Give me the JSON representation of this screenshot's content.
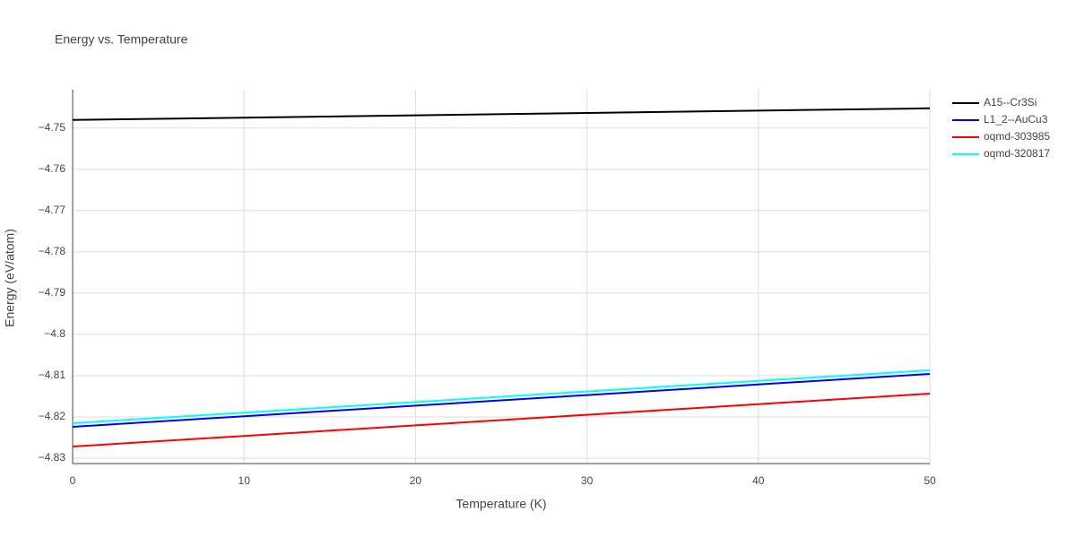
{
  "chart_data": {
    "type": "line",
    "title": "Energy vs. Temperature",
    "x_label": "Temperature (K)",
    "y_label": "Energy (eV/atom)",
    "x": [
      0,
      10,
      20,
      30,
      40,
      50
    ],
    "series": [
      {
        "name": "A15--Cr3Si",
        "color": "#000000",
        "values": [
          -4.74804,
          -4.74748,
          -4.74691,
          -4.74635,
          -4.74578,
          -4.74522
        ]
      },
      {
        "name": "L1_2--AuCu3",
        "color": "#0000ff",
        "values": [
          -4.82239,
          -4.81983,
          -4.81726,
          -4.8147,
          -4.81213,
          -4.80957
        ]
      },
      {
        "name": "oqmd-303985",
        "color": "#ff0000",
        "values": [
          -4.82717,
          -4.82461,
          -4.82204,
          -4.81948,
          -4.81691,
          -4.81435
        ]
      },
      {
        "name": "oqmd-320817",
        "color": "#00ffff",
        "values": [
          -4.82152,
          -4.81896,
          -4.81639,
          -4.81383,
          -4.81126,
          -4.8087
        ]
      }
    ],
    "xlim": [
      0,
      50
    ],
    "xticks": [
      0,
      10,
      20,
      30,
      40,
      50
    ],
    "ylim": [
      -4.8313,
      -4.7407
    ],
    "yticks": [
      {
        "value": -4.83,
        "label": "−4.83"
      },
      {
        "value": -4.82,
        "label": "−4.82"
      },
      {
        "value": -4.81,
        "label": "−4.81"
      },
      {
        "value": -4.8,
        "label": "−4.8"
      },
      {
        "value": -4.79,
        "label": "−4.79"
      },
      {
        "value": -4.78,
        "label": "−4.78"
      },
      {
        "value": -4.77,
        "label": "−4.77"
      },
      {
        "value": -4.76,
        "label": "−4.76"
      },
      {
        "value": -4.75,
        "label": "−4.75"
      }
    ],
    "grid": true,
    "legend": "top-right"
  }
}
